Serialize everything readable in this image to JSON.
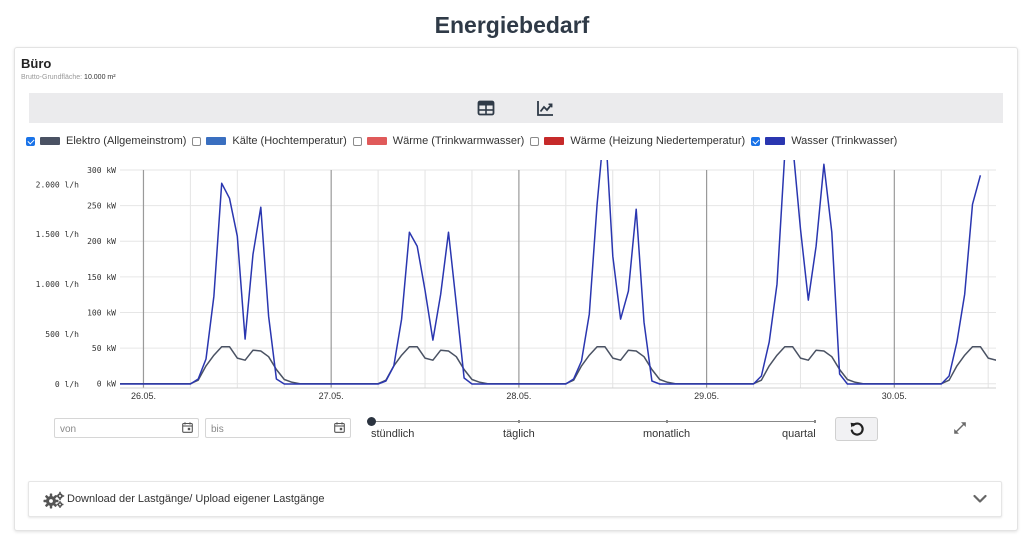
{
  "page": {
    "title": "Energiebedarf"
  },
  "card": {
    "title": "Büro",
    "area_label": "Brutto-Grundfläche:",
    "area_value": "10.000 m²"
  },
  "toolbar": {
    "icons": [
      "table-icon",
      "line-chart-icon"
    ]
  },
  "legend": [
    {
      "label": "Elektro (Allgemeinstrom)",
      "checked": true,
      "color": "#4a5263"
    },
    {
      "label": "Kälte (Hochtemperatur)",
      "checked": false,
      "color": "#3a6fc0"
    },
    {
      "label": "Wärme (Trinkwarmwasser)",
      "checked": false,
      "color": "#e05a5a"
    },
    {
      "label": "Wärme (Heizung Niedertemperatur)",
      "checked": false,
      "color": "#c62a2a"
    },
    {
      "label": "Wasser (Trinkwasser)",
      "checked": true,
      "color": "#2a36b0"
    }
  ],
  "chart_data": {
    "type": "line",
    "x_labels": [
      "26.05.",
      "27.05.",
      "28.05.",
      "29.05.",
      "30.05."
    ],
    "y_left": {
      "unit": "l/h",
      "ticks": [
        "2.000 l/h",
        "1.500 l/h",
        "1.000 l/h",
        "500 l/h",
        "0 l/h"
      ],
      "values": [
        2000,
        1500,
        1000,
        500,
        0
      ],
      "range": [
        -40,
        2143
      ]
    },
    "y_right": {
      "unit": "kW",
      "ticks": [
        "300 kW",
        "250 kW",
        "200 kW",
        "150 kW",
        "100 kW",
        "50 kW",
        "0 kW"
      ],
      "values": [
        300,
        250,
        200,
        150,
        100,
        50,
        0
      ],
      "range": [
        -6,
        300
      ]
    },
    "hours_per_day": 24,
    "start_hour": -3,
    "end_hour": 109,
    "series": [
      {
        "name": "Elektro (Allgemeinstrom)",
        "axis": "right",
        "color": "#4a5263",
        "day_pattern": [
          {
            "h": 0,
            "v": 0
          },
          {
            "h": 6,
            "v": 0
          },
          {
            "h": 7,
            "v": 5
          },
          {
            "h": 8,
            "v": 25
          },
          {
            "h": 9,
            "v": 40
          },
          {
            "h": 10,
            "v": 52
          },
          {
            "h": 11,
            "v": 52
          },
          {
            "h": 12,
            "v": 36
          },
          {
            "h": 13,
            "v": 33
          },
          {
            "h": 14,
            "v": 47
          },
          {
            "h": 15,
            "v": 46
          },
          {
            "h": 16,
            "v": 38
          },
          {
            "h": 17,
            "v": 20
          },
          {
            "h": 18,
            "v": 6
          },
          {
            "h": 19,
            "v": 2
          },
          {
            "h": 20,
            "v": 0
          },
          {
            "h": 24,
            "v": 0
          }
        ]
      },
      {
        "name": "Wasser (Trinkwasser)",
        "axis": "left",
        "color": "#2a36b0",
        "days": [
          [
            {
              "h": 0,
              "v": 0
            },
            {
              "h": 6,
              "v": 0
            },
            {
              "h": 7,
              "v": 50
            },
            {
              "h": 8,
              "v": 250
            },
            {
              "h": 9,
              "v": 880
            },
            {
              "h": 10,
              "v": 2010
            },
            {
              "h": 11,
              "v": 1860
            },
            {
              "h": 12,
              "v": 1480
            },
            {
              "h": 13,
              "v": 450
            },
            {
              "h": 14,
              "v": 1300
            },
            {
              "h": 15,
              "v": 1770
            },
            {
              "h": 16,
              "v": 680
            },
            {
              "h": 17,
              "v": 50
            },
            {
              "h": 18,
              "v": 0
            },
            {
              "h": 24,
              "v": 0
            }
          ],
          [
            {
              "h": 0,
              "v": 0
            },
            {
              "h": 6,
              "v": 0
            },
            {
              "h": 7,
              "v": 30
            },
            {
              "h": 8,
              "v": 180
            },
            {
              "h": 9,
              "v": 650
            },
            {
              "h": 10,
              "v": 1520
            },
            {
              "h": 11,
              "v": 1380
            },
            {
              "h": 12,
              "v": 940
            },
            {
              "h": 13,
              "v": 440
            },
            {
              "h": 14,
              "v": 900
            },
            {
              "h": 15,
              "v": 1520
            },
            {
              "h": 16,
              "v": 800
            },
            {
              "h": 17,
              "v": 60
            },
            {
              "h": 18,
              "v": 0
            },
            {
              "h": 24,
              "v": 0
            }
          ],
          [
            {
              "h": 0,
              "v": 0
            },
            {
              "h": 6,
              "v": 0
            },
            {
              "h": 7,
              "v": 50
            },
            {
              "h": 8,
              "v": 230
            },
            {
              "h": 9,
              "v": 700
            },
            {
              "h": 10,
              "v": 1800
            },
            {
              "h": 11,
              "v": 2650
            },
            {
              "h": 12,
              "v": 1280
            },
            {
              "h": 13,
              "v": 650
            },
            {
              "h": 14,
              "v": 930
            },
            {
              "h": 15,
              "v": 1750
            },
            {
              "h": 16,
              "v": 620
            },
            {
              "h": 17,
              "v": 30
            },
            {
              "h": 18,
              "v": 0
            },
            {
              "h": 24,
              "v": 0
            }
          ],
          [
            {
              "h": 0,
              "v": 0
            },
            {
              "h": 6,
              "v": 0
            },
            {
              "h": 7,
              "v": 80
            },
            {
              "h": 8,
              "v": 420
            },
            {
              "h": 9,
              "v": 1000
            },
            {
              "h": 10,
              "v": 2310
            },
            {
              "h": 11,
              "v": 2410
            },
            {
              "h": 12,
              "v": 1550
            },
            {
              "h": 13,
              "v": 840
            },
            {
              "h": 14,
              "v": 1380
            },
            {
              "h": 15,
              "v": 2200
            },
            {
              "h": 16,
              "v": 1520
            },
            {
              "h": 17,
              "v": 100
            },
            {
              "h": 18,
              "v": 0
            },
            {
              "h": 24,
              "v": 0
            }
          ],
          [
            {
              "h": 0,
              "v": 0
            },
            {
              "h": 6,
              "v": 0
            },
            {
              "h": 7,
              "v": 80
            },
            {
              "h": 8,
              "v": 420
            },
            {
              "h": 9,
              "v": 900
            },
            {
              "h": 10,
              "v": 1800
            },
            {
              "h": 11,
              "v": 2090
            }
          ]
        ]
      }
    ]
  },
  "date_from": {
    "placeholder": "von"
  },
  "date_to": {
    "placeholder": "bis"
  },
  "slider": {
    "labels": [
      "stündlich",
      "täglich",
      "monatlich",
      "quartal"
    ],
    "selected": "stündlich"
  },
  "download_panel": {
    "label": "Download der Lastgänge/ Upload eigener Lastgänge"
  }
}
